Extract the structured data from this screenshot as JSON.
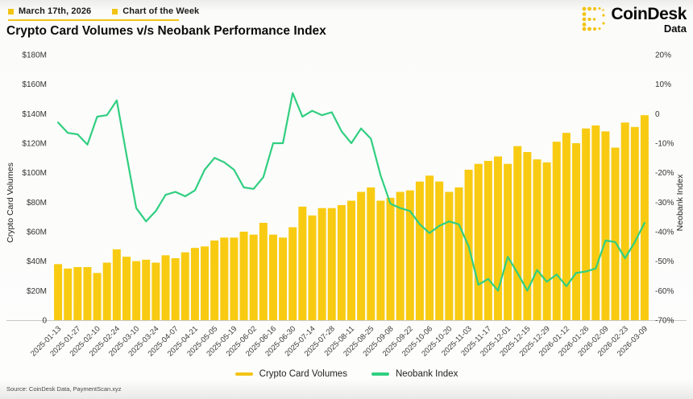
{
  "header": {
    "date_label": "March 17th, 2026",
    "series_label": "Chart of the Week",
    "title": "Crypto Card Volumes v/s Neobank Performance Index",
    "brand": {
      "name": "CoinDesk",
      "sub": "Data"
    }
  },
  "chart_data": {
    "type": "bar",
    "title": "Crypto Card Volumes v/s Neobank Performance Index",
    "x": [
      "2025-01-13",
      "2025-01-20",
      "2025-01-27",
      "2025-02-03",
      "2025-02-10",
      "2025-02-17",
      "2025-02-24",
      "2025-03-03",
      "2025-03-10",
      "2025-03-17",
      "2025-03-24",
      "2025-03-31",
      "2025-04-07",
      "2025-04-14",
      "2025-04-21",
      "2025-04-28",
      "2025-05-05",
      "2025-05-12",
      "2025-05-19",
      "2025-05-26",
      "2025-06-02",
      "2025-06-09",
      "2025-06-16",
      "2025-06-23",
      "2025-06-30",
      "2025-07-07",
      "2025-07-14",
      "2025-07-21",
      "2025-07-28",
      "2025-08-04",
      "2025-08-11",
      "2025-08-18",
      "2025-08-25",
      "2025-09-01",
      "2025-09-08",
      "2025-09-15",
      "2025-09-22",
      "2025-09-29",
      "2025-10-06",
      "2025-10-13",
      "2025-10-20",
      "2025-10-27",
      "2025-11-03",
      "2025-11-10",
      "2025-11-17",
      "2025-11-24",
      "2025-12-01",
      "2025-12-08",
      "2025-12-15",
      "2025-12-22",
      "2025-12-29",
      "2026-01-05",
      "2026-01-12",
      "2026-01-19",
      "2026-01-26",
      "2026-02-02",
      "2026-02-09",
      "2026-02-16",
      "2026-02-23",
      "2026-03-02",
      "2026-03-09"
    ],
    "x_tick_labels": [
      "2025-01-13",
      "2025-01-27",
      "2025-02-10",
      "2025-02-24",
      "2025-03-10",
      "2025-03-24",
      "2025-04-07",
      "2025-04-21",
      "2025-05-05",
      "2025-05-19",
      "2025-06-02",
      "2025-06-16",
      "2025-06-30",
      "2025-07-14",
      "2025-07-28",
      "2025-08-11",
      "2025-08-25",
      "2025-09-08",
      "2025-09-22",
      "2025-10-06",
      "2025-10-20",
      "2025-11-03",
      "2025-11-17",
      "2025-12-01",
      "2025-12-15",
      "2025-12-29",
      "2026-01-12",
      "2026-01-26",
      "2026-02-09",
      "2026-02-23",
      "2026-03-09"
    ],
    "series": [
      {
        "name": "Crypto Card Volumes",
        "type": "bar",
        "axis": "left",
        "color": "#f8cb12",
        "values": [
          38,
          35,
          36,
          36,
          32,
          39,
          48,
          43,
          40,
          41,
          39,
          44,
          42,
          46,
          49,
          50,
          54,
          56,
          56,
          60,
          58,
          66,
          58,
          56,
          63,
          77,
          71,
          76,
          76,
          78,
          81,
          87,
          90,
          81,
          83,
          87,
          88,
          94,
          98,
          94,
          87,
          90,
          102,
          106,
          108,
          111,
          106,
          118,
          114,
          109,
          107,
          121,
          127,
          120,
          130,
          132,
          128,
          117,
          134,
          131,
          139
        ]
      },
      {
        "name": "Neobank Index",
        "type": "line",
        "axis": "right",
        "color": "#30cf80",
        "values": [
          -3,
          -6.5,
          -7,
          -10.5,
          -1,
          -0.5,
          4.5,
          -14,
          -32,
          -36.5,
          -33,
          -27.5,
          -26.5,
          -28,
          -26,
          -19,
          -15,
          -16.5,
          -19,
          -25,
          -25.5,
          -21.5,
          -10,
          -10,
          7,
          -1,
          1,
          -0.5,
          0.5,
          -6,
          -10,
          -5,
          -8.5,
          -21,
          -30.5,
          -32,
          -33,
          -37.5,
          -40.5,
          -38,
          -36.5,
          -37.5,
          -45,
          -58,
          -56,
          -60,
          -48.5,
          -54,
          -60,
          -53,
          -57,
          -54.5,
          -58.5,
          -54,
          -53.5,
          -52.5,
          -43,
          -43.5,
          -49,
          -43.5,
          -37
        ]
      }
    ],
    "left_axis": {
      "label": "Crypto Card Volumes",
      "min": 0,
      "max": 180,
      "ticks": [
        "$180M",
        "$160M",
        "$140M",
        "$120M",
        "$100M",
        "$80M",
        "$60M",
        "$40M",
        "$20M",
        "0"
      ]
    },
    "right_axis": {
      "label": "Neobank Index",
      "min": -70,
      "max": 20,
      "ticks": [
        "20%",
        "10%",
        "0",
        "-10%",
        "-20%",
        "-30%",
        "-40%",
        "-50%",
        "-60%",
        "-70%"
      ]
    },
    "legend_position": "bottom",
    "grid": false
  },
  "footer": {
    "source": "Source: CoinDesk Data, PaymentScan.xyz"
  },
  "colors": {
    "accent_yellow": "#f2c314",
    "bar_yellow": "#f8cb12",
    "line_green": "#30cf80",
    "baseline_gray": "#c9c9c7"
  }
}
